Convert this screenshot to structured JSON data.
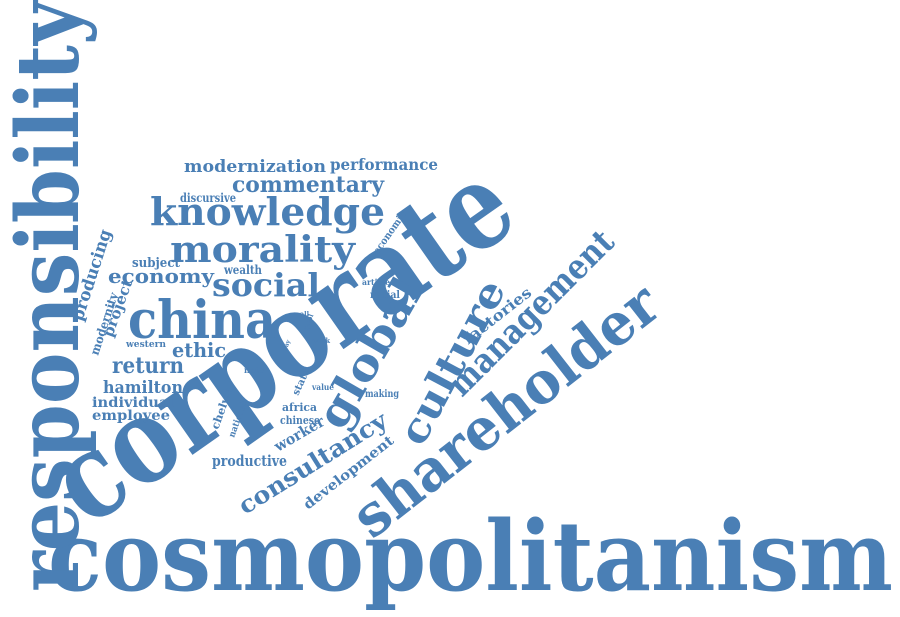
{
  "color": "#4a7fb5",
  "words": [
    "cosmopolitanism",
    "responsibility",
    "corporate",
    "shareholder",
    "china",
    "management",
    "culture",
    "global",
    "knowledge",
    "morality",
    "social",
    "consultancy",
    "commentary",
    "modernization",
    "performance",
    "economy",
    "return",
    "ethic",
    "hamilton",
    "individual",
    "employee",
    "factories",
    "development",
    "productive",
    "worker",
    "producing",
    "project",
    "modernity",
    "subject",
    "discursive",
    "wealth",
    "economic",
    "western",
    "chelwa",
    "national",
    "africa",
    "chinese",
    "state",
    "making",
    "value",
    "note",
    "article",
    "racial",
    "work",
    "pool",
    "way",
    "all"
  ]
}
